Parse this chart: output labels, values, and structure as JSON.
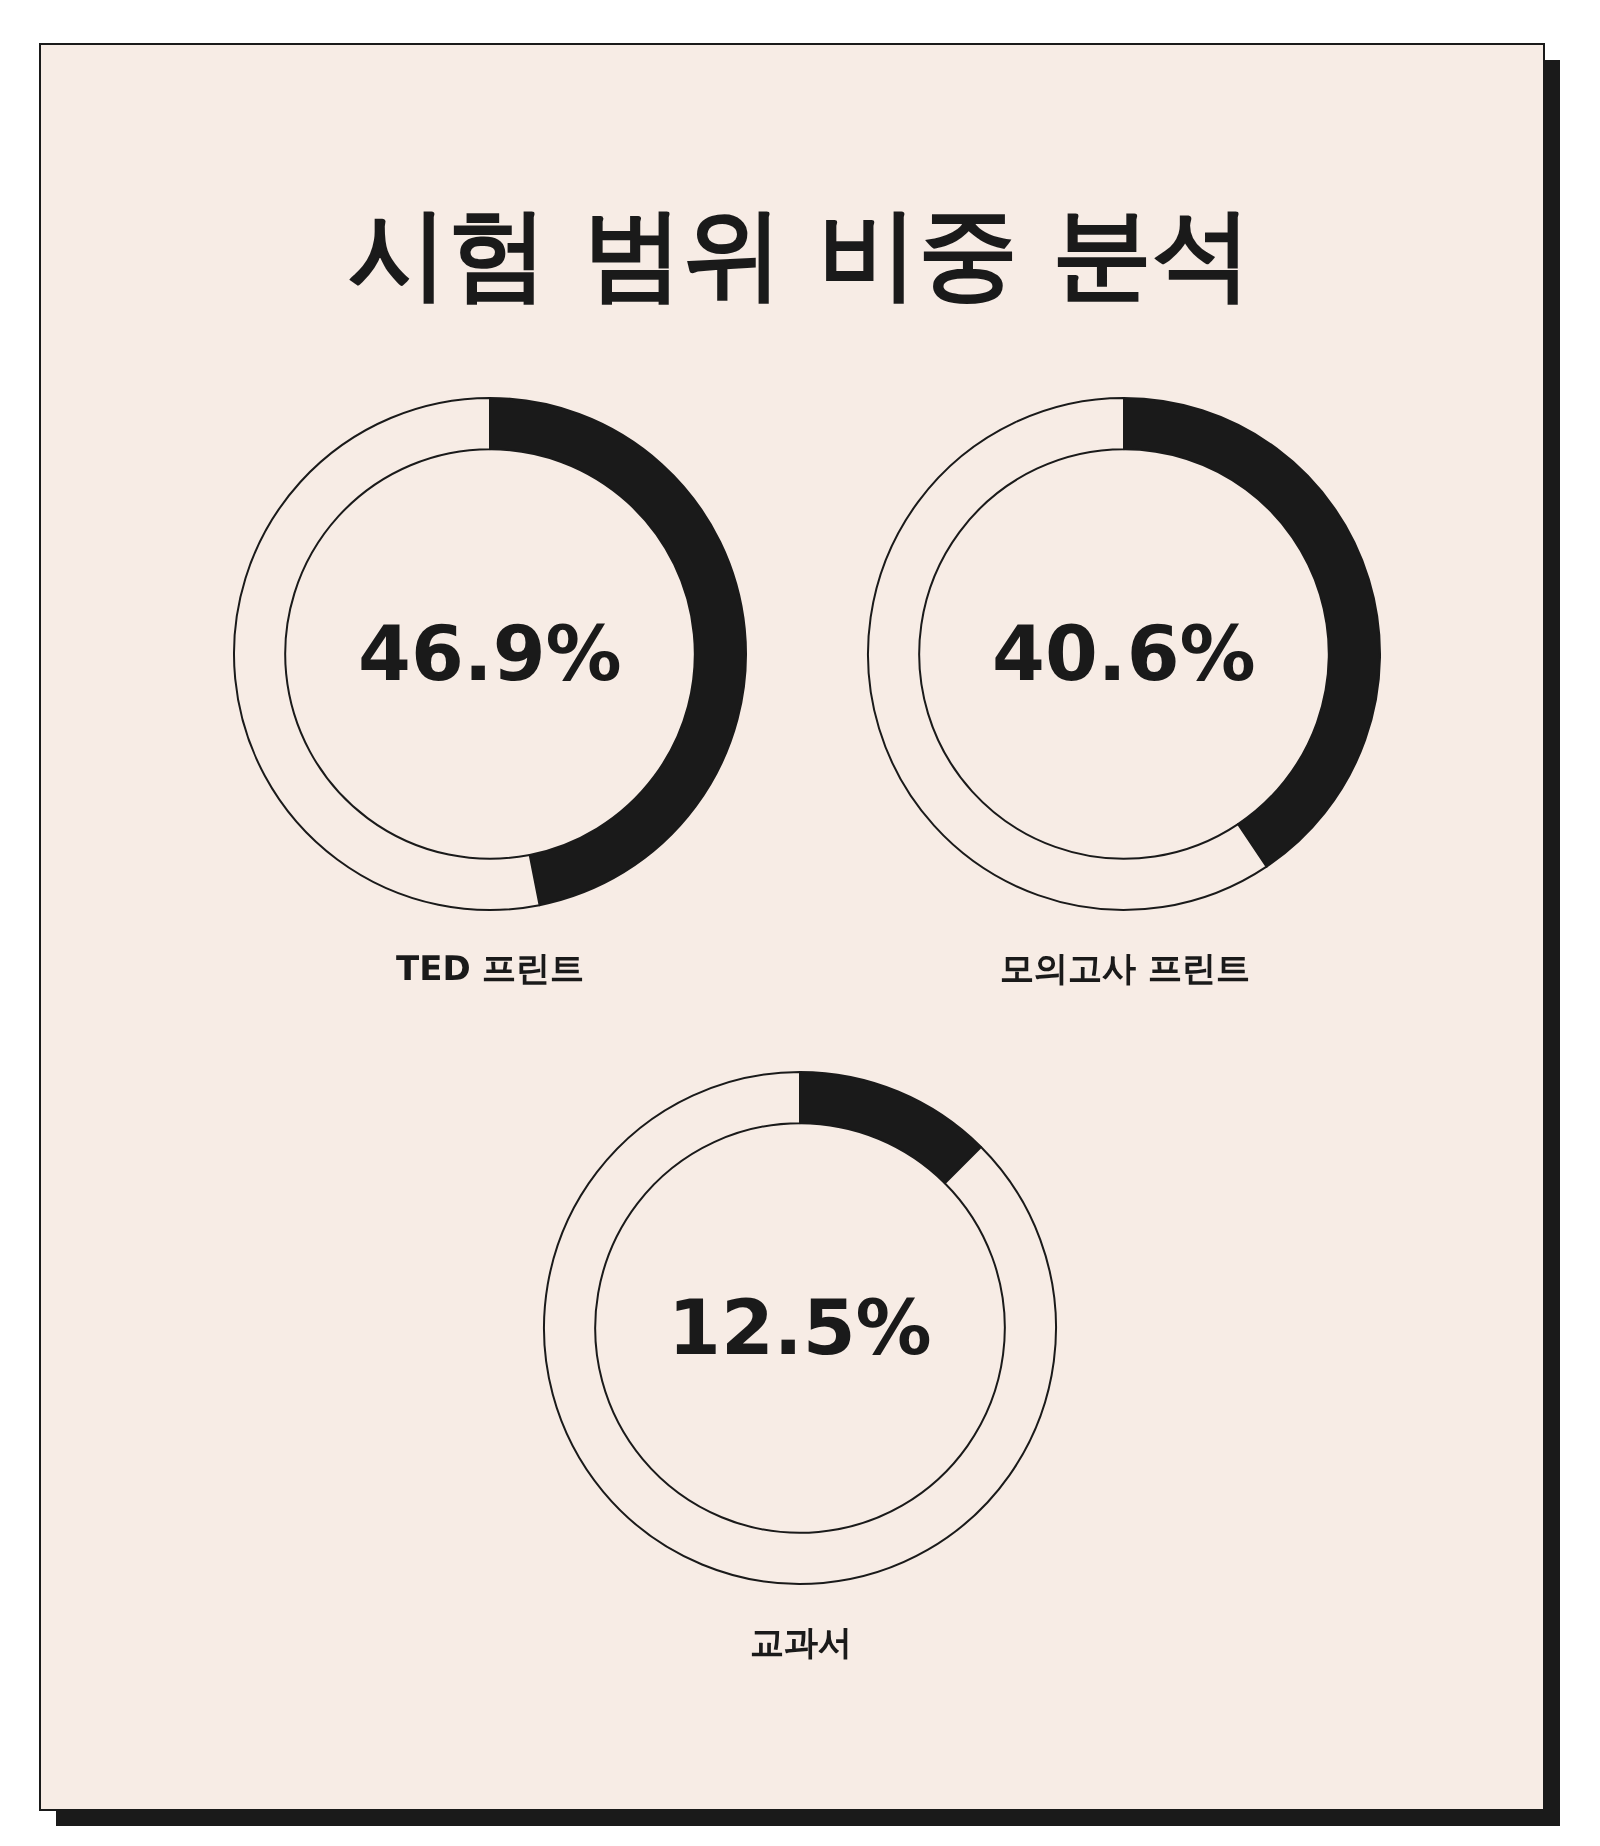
{
  "chart_data": [
    {
      "type": "donut",
      "title": "시험 범위 비중 분석",
      "xlabel": "TED 프린트",
      "categories": [
        null,
        null
      ],
      "values": [
        46.9,
        53.1
      ],
      "colors": [
        "#1a1a1a",
        "#f7ece5"
      ],
      "annotations": [
        "46.9%"
      ]
    },
    {
      "type": "donut",
      "xlabel": "모의고사 프린트",
      "categories": [
        null,
        null
      ],
      "values": [
        40.6,
        59.4
      ],
      "colors": [
        "#1a1a1a",
        "#f7ece5"
      ],
      "annotations": [
        "40.6%"
      ]
    },
    {
      "type": "donut",
      "xlabel": "교과서",
      "categories": [
        null,
        null
      ],
      "values": [
        12.5,
        87.5
      ],
      "colors": [
        "#1a1a1a",
        "#f7ece5"
      ],
      "annotations": [
        "12.5%"
      ]
    }
  ]
}
